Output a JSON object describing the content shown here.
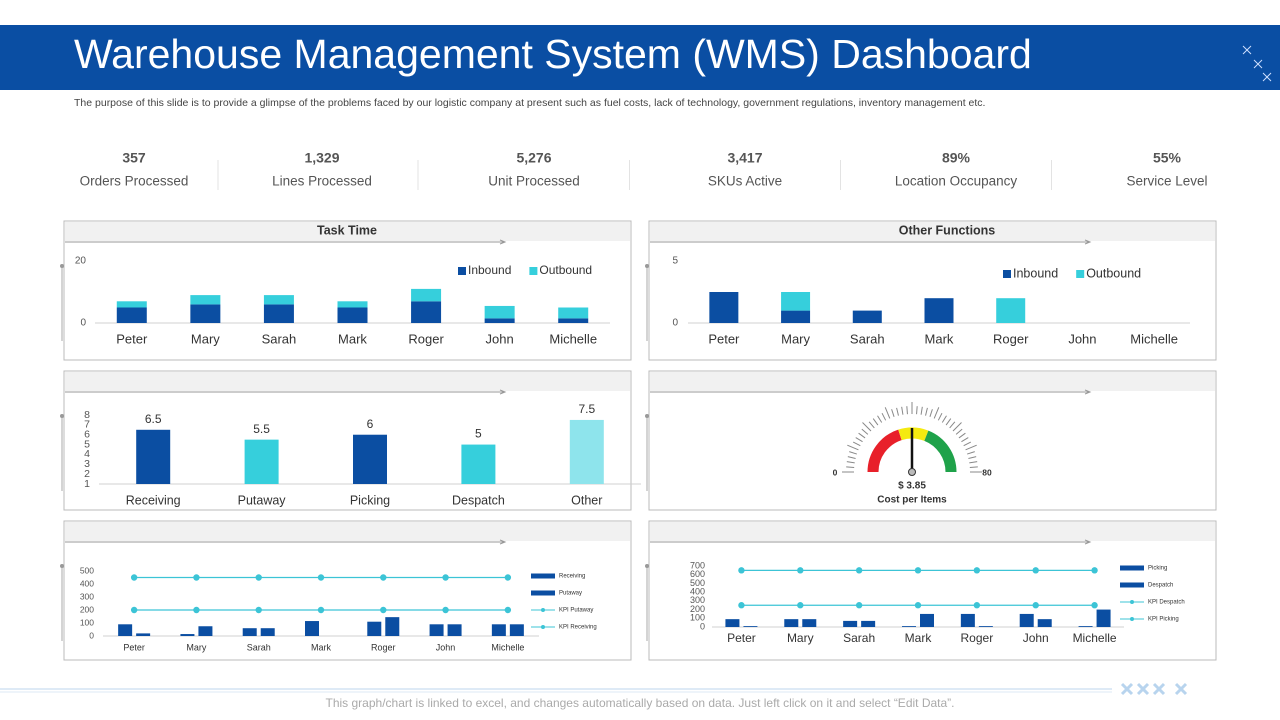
{
  "header": {
    "title": "Warehouse Management System (WMS) Dashboard",
    "description": "The purpose of this slide is to provide a glimpse of the problems faced by our logistic company at present such as fuel costs, lack of technology, government regulations, inventory management etc."
  },
  "kpis": [
    {
      "value": "357",
      "label": "Orders Processed"
    },
    {
      "value": "1,329",
      "label": "Lines Processed"
    },
    {
      "value": "5,276",
      "label": "Unit Processed"
    },
    {
      "value": "3,417",
      "label": "SKUs Active"
    },
    {
      "value": "89%",
      "label": "Location Occupancy"
    },
    {
      "value": "55%",
      "label": "Service Level"
    }
  ],
  "chart_data": [
    {
      "type": "bar",
      "title": "Task Time",
      "stacked": true,
      "categories": [
        "Peter",
        "Mary",
        "Sarah",
        "Mark",
        "Roger",
        "John",
        "Michelle"
      ],
      "series": [
        {
          "name": "Inbound",
          "color": "#0b4ea2",
          "values": [
            5,
            6,
            6,
            5,
            7,
            1.5,
            1.5
          ]
        },
        {
          "name": "Outbound",
          "color": "#36cfdc",
          "values": [
            2,
            3,
            3,
            2,
            4,
            4,
            3.5
          ]
        }
      ],
      "ylim": [
        0,
        20
      ],
      "yticks": [
        0,
        20
      ]
    },
    {
      "type": "bar",
      "title": "Other Functions",
      "stacked": true,
      "categories": [
        "Peter",
        "Mary",
        "Sarah",
        "Mark",
        "Roger",
        "John",
        "Michelle"
      ],
      "series": [
        {
          "name": "Inbound",
          "color": "#0b4ea2",
          "values": [
            2.5,
            1,
            1,
            2,
            0,
            0,
            0
          ]
        },
        {
          "name": "Outbound",
          "color": "#36cfdc",
          "values": [
            0,
            1.5,
            0,
            0,
            2,
            0,
            0
          ]
        }
      ],
      "ylim": [
        0,
        5
      ],
      "yticks": [
        0,
        5
      ]
    },
    {
      "type": "bar",
      "categories": [
        "Receiving",
        "Putaway",
        "Picking",
        "Despatch",
        "Other"
      ],
      "values": [
        6.5,
        5.5,
        6,
        5,
        7.5
      ],
      "colors": [
        "#0b4ea2",
        "#36cfdc",
        "#0b4ea2",
        "#36cfdc",
        "#8ee4ec"
      ],
      "ylim": [
        1,
        8
      ],
      "yticks": [
        1,
        2,
        3,
        4,
        5,
        6,
        7,
        8
      ]
    },
    {
      "type": "combo",
      "categories": [
        "Peter",
        "Mary",
        "Sarah",
        "Mark",
        "Roger",
        "John",
        "Michelle"
      ],
      "series": [
        {
          "name": "Receiving",
          "kind": "bar",
          "color": "#0b4ea2",
          "values": [
            90,
            15,
            60,
            115,
            110,
            90,
            90
          ]
        },
        {
          "name": "Putaway",
          "kind": "bar",
          "color": "#0b4ea2",
          "values": [
            20,
            75,
            60,
            0,
            145,
            90,
            90
          ]
        },
        {
          "name": "KPI Putaway",
          "kind": "line",
          "color": "#3cc4d6",
          "values": [
            200,
            200,
            200,
            200,
            200,
            200,
            200
          ]
        },
        {
          "name": "KPI Receiving",
          "kind": "line",
          "color": "#3cc4d6",
          "values": [
            450,
            450,
            450,
            450,
            450,
            450,
            450
          ]
        }
      ],
      "ylim": [
        0,
        500
      ],
      "yticks": [
        0,
        100,
        200,
        300,
        400,
        500
      ]
    },
    {
      "type": "combo",
      "categories": [
        "Peter",
        "Mary",
        "Sarah",
        "Mark",
        "Roger",
        "John",
        "Michelle"
      ],
      "series": [
        {
          "name": "Picking",
          "kind": "bar",
          "color": "#0b4ea2",
          "values": [
            90,
            90,
            70,
            10,
            150,
            150,
            10
          ]
        },
        {
          "name": "Despatch",
          "kind": "bar",
          "color": "#0b4ea2",
          "values": [
            10,
            90,
            70,
            150,
            10,
            90,
            200
          ]
        },
        {
          "name": "KPI Despatch",
          "kind": "line",
          "color": "#3cc4d6",
          "values": [
            250,
            250,
            250,
            250,
            250,
            250,
            250
          ]
        },
        {
          "name": "KPI Picking",
          "kind": "line",
          "color": "#3cc4d6",
          "values": [
            650,
            650,
            650,
            650,
            650,
            650,
            650
          ]
        }
      ],
      "ylim": [
        0,
        700
      ],
      "yticks": [
        0,
        100,
        200,
        300,
        400,
        500,
        600,
        700
      ]
    }
  ],
  "gauge": {
    "min": "0",
    "max": "80",
    "value": "$ 3.85",
    "caption": "Cost per Items"
  },
  "footer": "This graph/chart is linked to excel, and changes automatically based on data. Just left click on it and select “Edit Data”."
}
